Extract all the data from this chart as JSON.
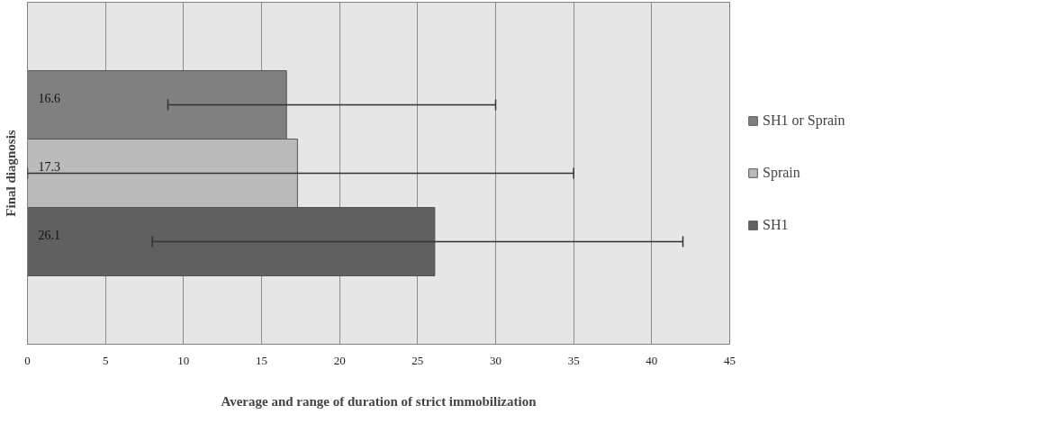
{
  "chart_data": {
    "type": "bar",
    "orientation": "horizontal",
    "categories": [
      null
    ],
    "xlabel": "Average and range of duration of strict immobilization",
    "ylabel": "Final diagnosis",
    "series": [
      {
        "name": "SH1 or Sprain",
        "color": "#808080",
        "values": [
          16.6
        ],
        "errors": [
          [
            9,
            30
          ]
        ]
      },
      {
        "name": "Sprain",
        "color": "#bababa",
        "values": [
          17.3
        ],
        "errors": [
          [
            0,
            35
          ]
        ]
      },
      {
        "name": "SH1",
        "color": "#606060",
        "values": [
          26.1
        ],
        "errors": [
          [
            8,
            42
          ]
        ]
      }
    ],
    "xlim": [
      0,
      45
    ],
    "xticks": [
      0,
      5,
      10,
      15,
      20,
      25,
      30,
      35,
      40,
      45
    ],
    "grid": "x",
    "legend": "right",
    "data_labels": true
  }
}
